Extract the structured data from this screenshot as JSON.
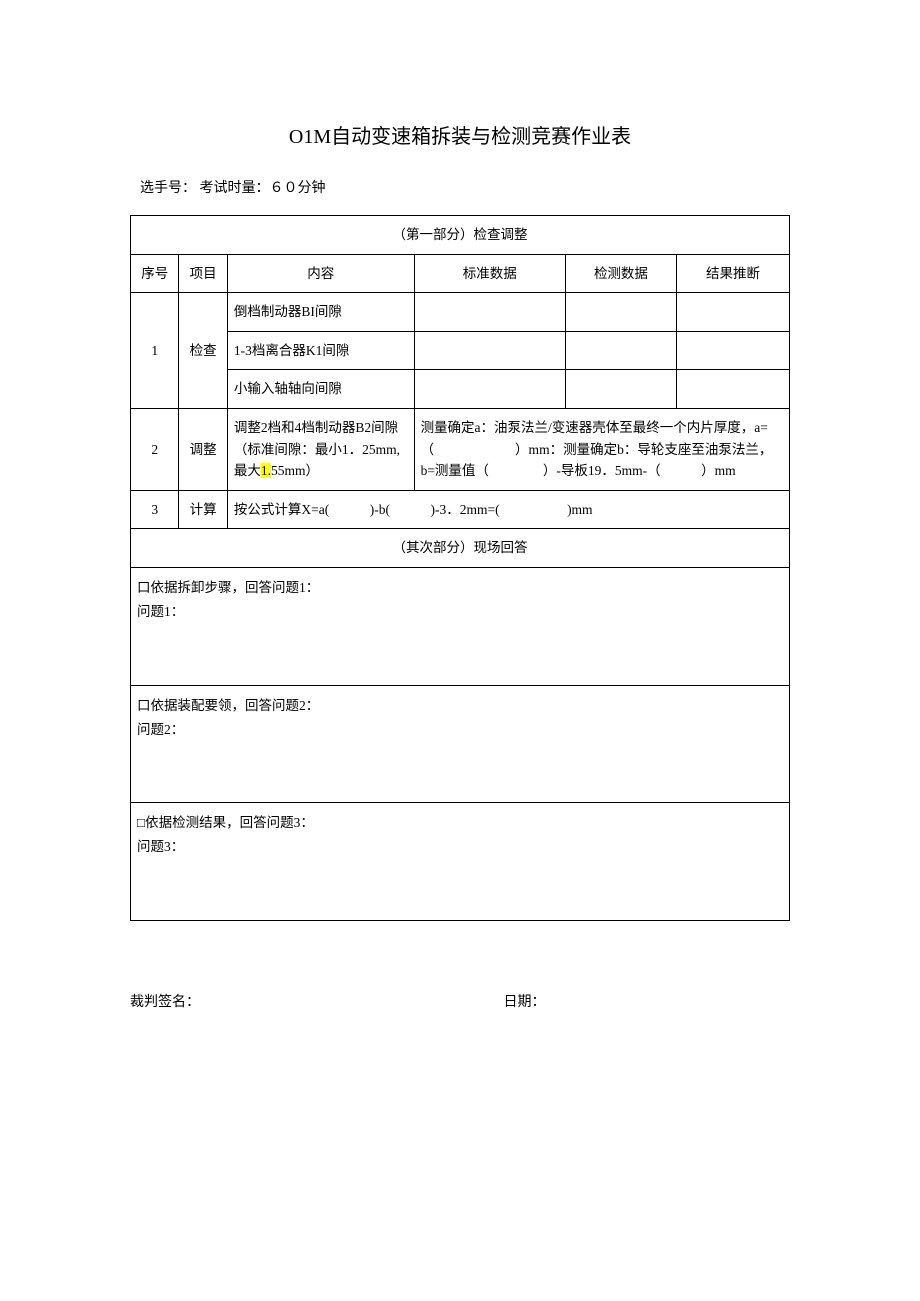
{
  "title": "O1M自动变速箱拆装与检测竞赛作业表",
  "subtitle": "选手号：  考试时量：６０分钟",
  "section1_header": "（第一部分）检查调整",
  "headers": {
    "seq": "序号",
    "item": "项目",
    "content": "内容",
    "standard": "标准数据",
    "detected": "检测数据",
    "result": "结果推断"
  },
  "row1": {
    "seq": "1",
    "item": "检查",
    "c1": "倒档制动器BI间隙",
    "c2": "1-3档离合器K1间隙",
    "c3": "小输入轴轴向间隙"
  },
  "row2": {
    "seq": "2",
    "item": "调整",
    "content_pre": "调整2档和4档制动器B2间隙（标准间隙：最小1．25mm,最大",
    "content_hl": "1.",
    "content_post": "55mm）",
    "right": "测量确定a：油泵法兰/变速器壳体至最终一个内片厚度，a=（　　　　　　）mm：测量确定b：导轮支座至油泵法兰，b=测量值（　　　　）-导板19．5mm-（　　　）mm"
  },
  "row3": {
    "seq": "3",
    "item": "计算",
    "content": "按公式计算X=a(　　　)-b(　　　)-3．2mm=(　　　　　)mm"
  },
  "section2_header": "（其次部分）现场回答",
  "qa1_l1": "口依据拆卸步骤，回答问题1：",
  "qa1_l2": "问题1：",
  "qa2_l1": "口依据装配要领，回答问题2：",
  "qa2_l2": "问题2：",
  "qa3_l1": "□依据检测结果，回答问题3：",
  "qa3_l2": "问题3：",
  "footer_sign": "裁判签名：",
  "footer_date": "日期："
}
